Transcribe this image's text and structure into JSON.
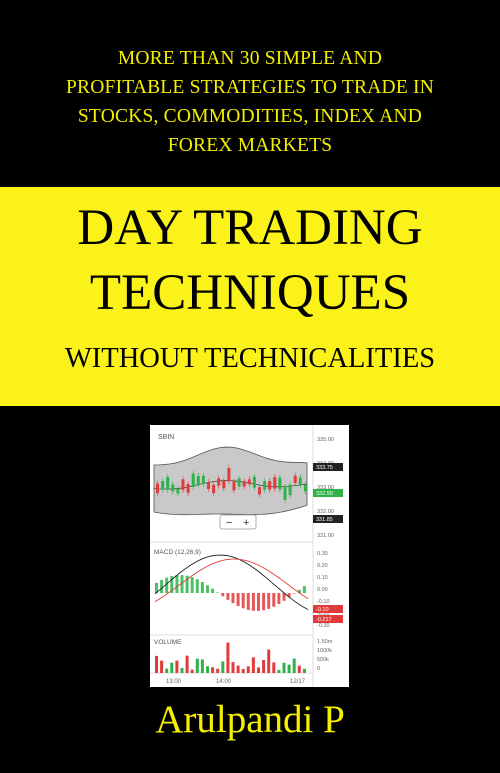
{
  "cover": {
    "tagline_lines": [
      "MORE THAN 30 SIMPLE AND",
      "PROFITABLE STRATEGIES TO TRADE IN",
      "STOCKS, COMMODITIES, INDEX AND",
      "FOREX MARKETS"
    ],
    "title_line1": "DAY TRADING",
    "title_line2": "TECHNIQUES",
    "subtitle": "WITHOUT TECHNICALITIES",
    "author": "Arulpandi P"
  },
  "colors": {
    "background": "#000000",
    "accent_yellow": "#fbf21a",
    "tagline_yellow": "#f5f000"
  },
  "chart_data": {
    "type": "candlestick",
    "ticker": "SBIN",
    "macd_label": "MACD (12,26,9)",
    "volume_label": "VOLUME",
    "zoom_controls": [
      "−",
      "+"
    ],
    "x_ticks": [
      "13:00",
      "14:00",
      "12/17"
    ],
    "price_ticks": [
      "335.00",
      "334.00",
      "333.00",
      "332.00",
      "331.00"
    ],
    "price_tags": [
      "333.75",
      "332.90",
      "331.85"
    ],
    "macd_ticks": [
      "0.30",
      "0.20",
      "0.10",
      "0.00",
      "-0.10",
      "-0.20",
      "-0.30"
    ],
    "macd_tags": [
      "-0.10",
      "-0.217"
    ],
    "volume_ticks": [
      "1.50m",
      "1000k",
      "500k",
      "0"
    ]
  }
}
